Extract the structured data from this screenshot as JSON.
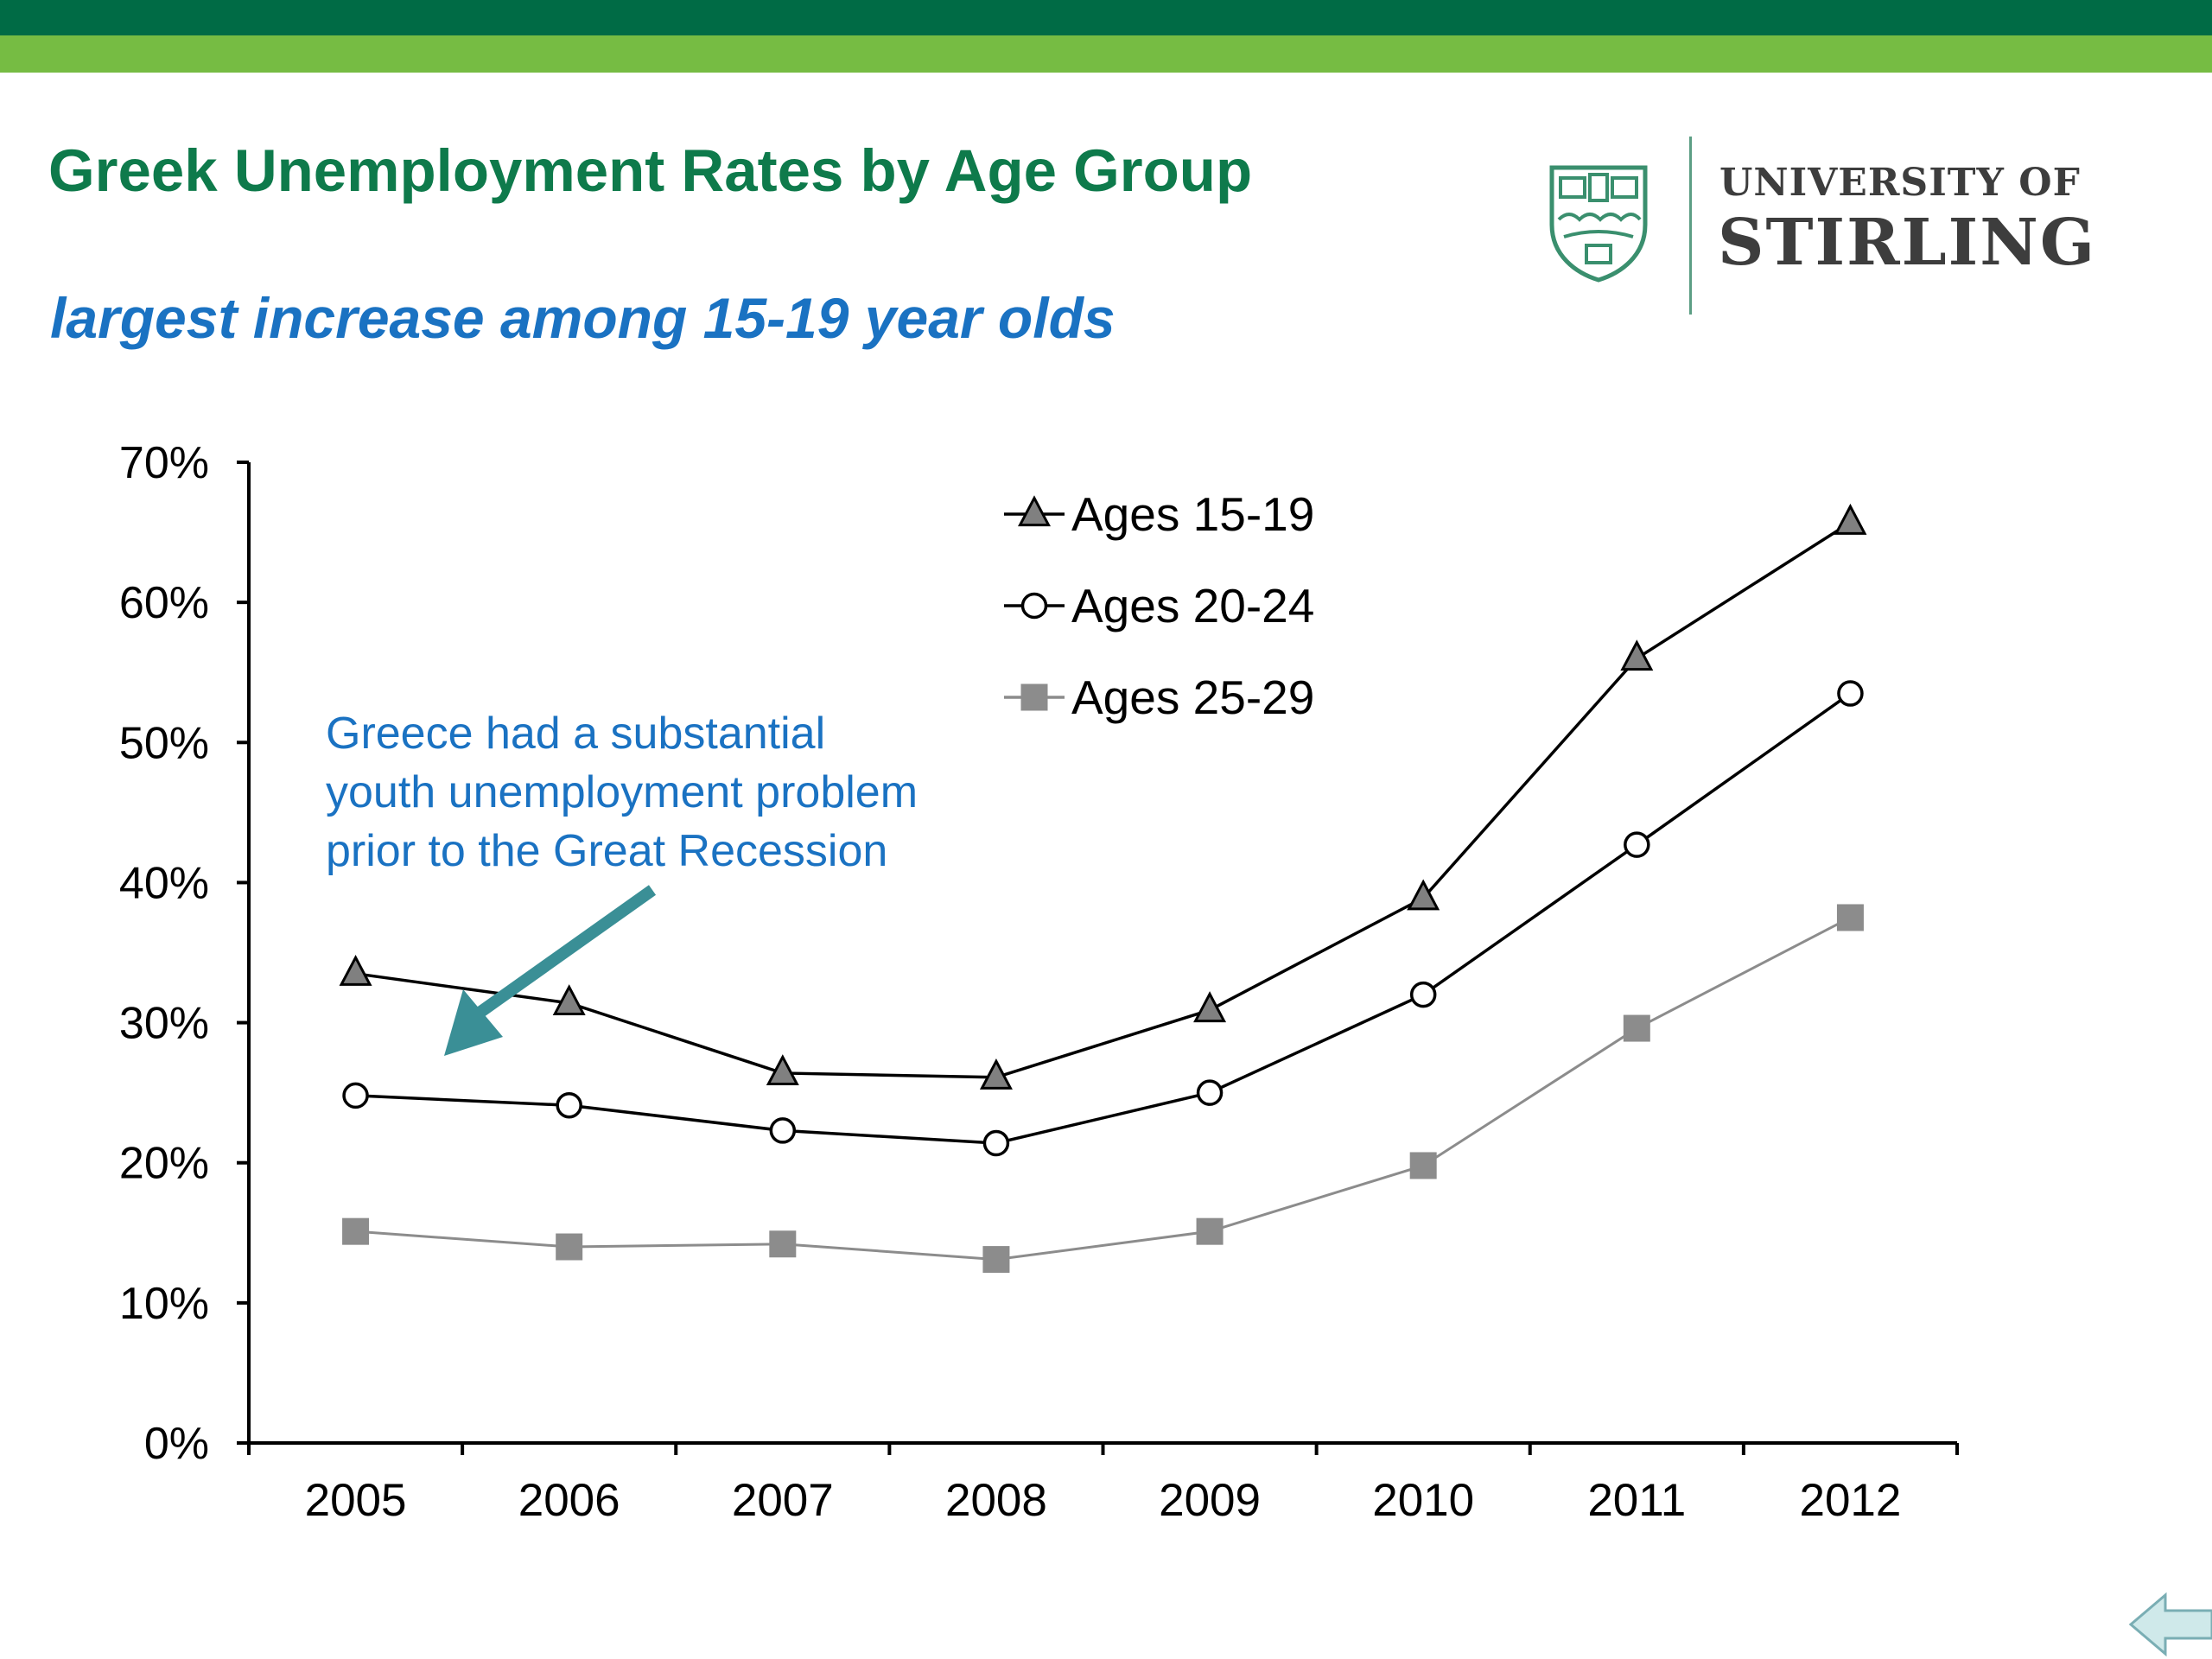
{
  "slide": {
    "title": "Greek Unemployment Rates by Age Group",
    "subtitle": "largest increase among 15-19 year olds"
  },
  "logo": {
    "line1": "UNIVERSITY OF",
    "line2": "STIRLING"
  },
  "colors": {
    "header_dark": "#006b45",
    "header_light": "#76bc43",
    "title": "#0e7a4b",
    "subtitle": "#1a72c2",
    "annotation": "#1a72c2",
    "arrow": "#3a8f96"
  },
  "chart_data": {
    "type": "line",
    "x": [
      "2005",
      "2006",
      "2007",
      "2008",
      "2009",
      "2010",
      "2011",
      "2012"
    ],
    "ylim": [
      0,
      70
    ],
    "yticks": [
      0,
      10,
      20,
      30,
      40,
      50,
      60,
      70
    ],
    "ytick_labels": [
      "0%",
      "10%",
      "20%",
      "30%",
      "40%",
      "50%",
      "60%",
      "70%"
    ],
    "xlabel": "",
    "ylabel": "",
    "grid": false,
    "legend_position": "top-center",
    "series": [
      {
        "name": "Ages 15-19",
        "marker": "triangle",
        "line_color": "#000000",
        "marker_fill": "#808080",
        "values": [
          33.5,
          31.4,
          26.4,
          26.1,
          30.9,
          38.9,
          56.0,
          65.7
        ]
      },
      {
        "name": "Ages 20-24",
        "marker": "circle",
        "line_color": "#000000",
        "marker_fill": "#ffffff",
        "values": [
          24.8,
          24.1,
          22.3,
          21.4,
          25.0,
          32.0,
          42.7,
          53.5
        ]
      },
      {
        "name": "Ages 25-29",
        "marker": "square",
        "line_color": "#8c8c8c",
        "marker_fill": "#8c8c8c",
        "values": [
          15.1,
          14.0,
          14.2,
          13.1,
          15.1,
          19.8,
          29.6,
          37.5
        ]
      }
    ],
    "annotation": {
      "lines": [
        "Greece had a substantial",
        "youth unemployment problem",
        "prior to the Great Recession"
      ],
      "arrow_points_to": "2005-2006"
    }
  }
}
